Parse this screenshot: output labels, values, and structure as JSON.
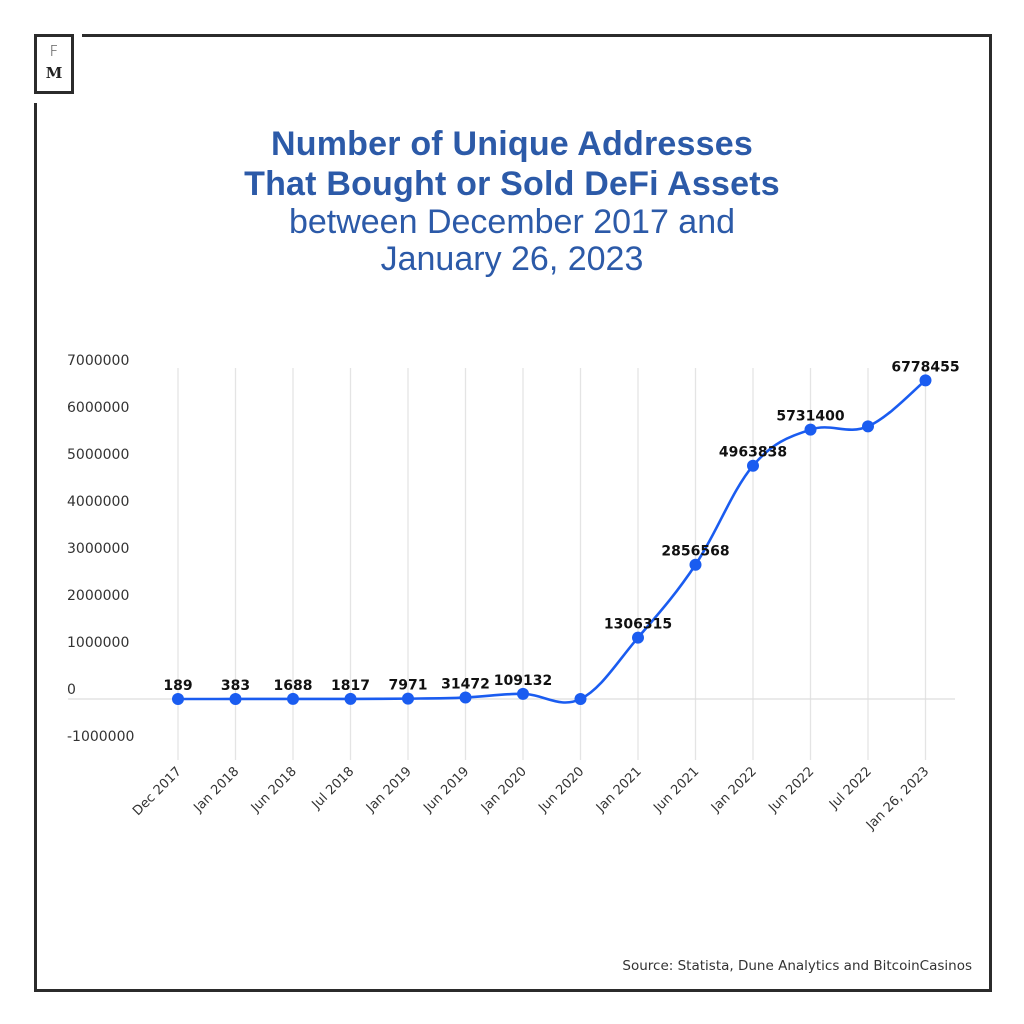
{
  "logo": {
    "top": "F",
    "bottom": "M"
  },
  "title": {
    "line1": "Number of Unique Addresses",
    "line2": "That Bought or Sold DeFi Assets",
    "line3": "between December 2017 and",
    "line4": "January 26, 2023"
  },
  "source": "Source: Statista, Dune Analytics and BitcoinCasinos",
  "colors": {
    "title": "#2c5aa8",
    "series": "#1a5cf0",
    "grid": "#e4e4e4",
    "frame": "#2b2b2b"
  },
  "chart_data": {
    "type": "line",
    "title": "Number of Unique Addresses That Bought or Sold DeFi Assets between December 2017 and January 26, 2023",
    "xlabel": "",
    "ylabel": "",
    "ylim": [
      -1000000,
      7000000
    ],
    "yticks": [
      7000000,
      6000000,
      5000000,
      4000000,
      3000000,
      2000000,
      1000000,
      0,
      -1000000
    ],
    "ytick_labels": [
      "7000000",
      "6000000",
      "5000000",
      "4000000",
      "3000000",
      "2000000",
      "1000000",
      "0",
      "-1000000"
    ],
    "grid": "vertical",
    "legend": "none",
    "categories": [
      "Dec 2017",
      "Jan 2018",
      "Jun 2018",
      "Jul 2018",
      "Jan 2019",
      "Jun 2019",
      "Jan 2020",
      "Jun 2020",
      "Jan 2021",
      "Jun 2021",
      "Jan 2022",
      "Jun 2022",
      "Jul 2022",
      "Jan 26, 2023"
    ],
    "series": [
      {
        "name": "Unique addresses",
        "values": [
          189,
          383,
          1688,
          1817,
          7971,
          31472,
          109132,
          0,
          1306315,
          2856568,
          4963838,
          5731400,
          5800000,
          6778455
        ],
        "data_labels": [
          "189",
          "383",
          "1688",
          "1817",
          "7971",
          "31472",
          "109132",
          "",
          "1306315",
          "2856568",
          "4963838",
          "5731400",
          "",
          "6778455"
        ]
      }
    ]
  }
}
